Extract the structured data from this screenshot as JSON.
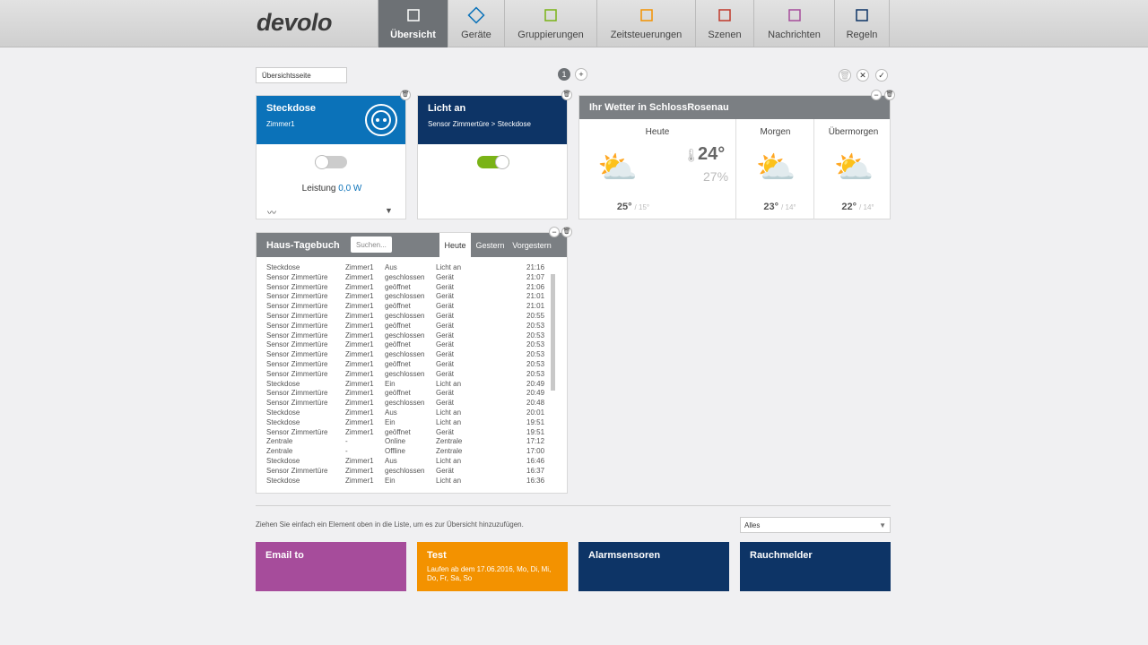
{
  "header": {
    "logo": "devolo",
    "nav": [
      "Übersicht",
      "Geräte",
      "Gruppierungen",
      "Zeitsteuerungen",
      "Szenen",
      "Nachrichten",
      "Regeln"
    ]
  },
  "toolbar": {
    "page_name": "Übersichtsseite",
    "page_number": "1",
    "add": "+"
  },
  "widgets": {
    "steckdose": {
      "title": "Steckdose",
      "room": "Zimmer1",
      "power_label": "Leistung",
      "power_value": "0,0 W"
    },
    "licht": {
      "title": "Licht an",
      "subtitle": "Sensor Zimmertüre > Steckdose"
    },
    "weather": {
      "title": "Ihr Wetter in SchlossRosenau",
      "current_temp": "24°",
      "humidity": "27%",
      "days": [
        {
          "name": "Heute",
          "high": "25°",
          "low": "/ 15°"
        },
        {
          "name": "Morgen",
          "high": "23°",
          "low": "/ 14°"
        },
        {
          "name": "Übermorgen",
          "high": "22°",
          "low": "/ 14°"
        }
      ]
    }
  },
  "log": {
    "title": "Haus-Tagebuch",
    "search_placeholder": "Suchen...",
    "tabs": [
      "Heute",
      "Gestern",
      "Vorgestern"
    ],
    "rows": [
      [
        "Steckdose",
        "Zimmer1",
        "Aus",
        "Licht an",
        "21:16"
      ],
      [
        "Sensor Zimmertüre",
        "Zimmer1",
        "geschlossen",
        "Gerät",
        "21:07"
      ],
      [
        "Sensor Zimmertüre",
        "Zimmer1",
        "geöffnet",
        "Gerät",
        "21:06"
      ],
      [
        "Sensor Zimmertüre",
        "Zimmer1",
        "geschlossen",
        "Gerät",
        "21:01"
      ],
      [
        "Sensor Zimmertüre",
        "Zimmer1",
        "geöffnet",
        "Gerät",
        "21:01"
      ],
      [
        "Sensor Zimmertüre",
        "Zimmer1",
        "geschlossen",
        "Gerät",
        "20:55"
      ],
      [
        "Sensor Zimmertüre",
        "Zimmer1",
        "geöffnet",
        "Gerät",
        "20:53"
      ],
      [
        "Sensor Zimmertüre",
        "Zimmer1",
        "geschlossen",
        "Gerät",
        "20:53"
      ],
      [
        "Sensor Zimmertüre",
        "Zimmer1",
        "geöffnet",
        "Gerät",
        "20:53"
      ],
      [
        "Sensor Zimmertüre",
        "Zimmer1",
        "geschlossen",
        "Gerät",
        "20:53"
      ],
      [
        "Sensor Zimmertüre",
        "Zimmer1",
        "geöffnet",
        "Gerät",
        "20:53"
      ],
      [
        "Sensor Zimmertüre",
        "Zimmer1",
        "geschlossen",
        "Gerät",
        "20:53"
      ],
      [
        "Steckdose",
        "Zimmer1",
        "Ein",
        "Licht an",
        "20:49"
      ],
      [
        "Sensor Zimmertüre",
        "Zimmer1",
        "geöffnet",
        "Gerät",
        "20:49"
      ],
      [
        "Sensor Zimmertüre",
        "Zimmer1",
        "geschlossen",
        "Gerät",
        "20:48"
      ],
      [
        "Steckdose",
        "Zimmer1",
        "Aus",
        "Licht an",
        "20:01"
      ],
      [
        "Steckdose",
        "Zimmer1",
        "Ein",
        "Licht an",
        "19:51"
      ],
      [
        "Sensor Zimmertüre",
        "Zimmer1",
        "geöffnet",
        "Gerät",
        "19:51"
      ],
      [
        "Zentrale",
        "-",
        "Online",
        "Zentrale",
        "17:12"
      ],
      [
        "Zentrale",
        "-",
        "Offline",
        "Zentrale",
        "17:00"
      ],
      [
        "Steckdose",
        "Zimmer1",
        "Aus",
        "Licht an",
        "16:46"
      ],
      [
        "Sensor Zimmertüre",
        "Zimmer1",
        "geschlossen",
        "Gerät",
        "16:37"
      ],
      [
        "Steckdose",
        "Zimmer1",
        "Ein",
        "Licht an",
        "16:36"
      ]
    ]
  },
  "footer": {
    "hint": "Ziehen Sie einfach ein Element oben in die Liste, um es zur Übersicht hinzuzufügen.",
    "filter": "Alles",
    "tiles": [
      {
        "title": "Email to"
      },
      {
        "title": "Test",
        "subtitle": "Laufen ab dem 17.06.2016, Mo, Di, Mi, Do, Fr, Sa, So"
      },
      {
        "title": "Alarmsensoren"
      },
      {
        "title": "Rauchmelder"
      }
    ]
  }
}
